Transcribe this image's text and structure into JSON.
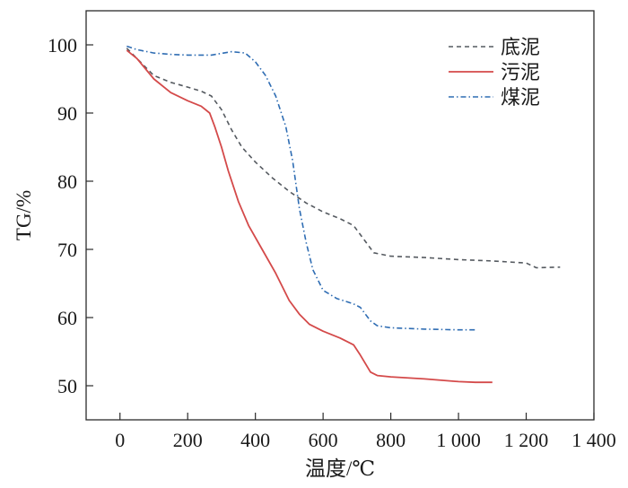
{
  "chart_data": {
    "type": "line",
    "xlabel": "温度/℃",
    "ylabel": "TG/%",
    "xlim": [
      -100,
      1400
    ],
    "ylim": [
      45,
      105
    ],
    "xticks": [
      0,
      200,
      400,
      600,
      800,
      1000,
      1200,
      1400
    ],
    "xtick_labels": [
      "0",
      "200",
      "400",
      "600",
      "800",
      "1 000",
      "1 200",
      "1 400"
    ],
    "yticks": [
      50,
      60,
      70,
      80,
      90,
      100
    ],
    "ytick_labels": [
      "50",
      "60",
      "70",
      "80",
      "90",
      "100"
    ],
    "grid": false,
    "legend_position": "top-right",
    "series": [
      {
        "name": "底泥",
        "color": "#555a60",
        "style": "dashed",
        "points": [
          [
            20,
            99.5
          ],
          [
            50,
            98
          ],
          [
            100,
            95.5
          ],
          [
            150,
            94.5
          ],
          [
            200,
            93.8
          ],
          [
            240,
            93.2
          ],
          [
            270,
            92.5
          ],
          [
            300,
            90.5
          ],
          [
            330,
            87.5
          ],
          [
            360,
            85
          ],
          [
            400,
            82.8
          ],
          [
            450,
            80.5
          ],
          [
            500,
            78.5
          ],
          [
            550,
            76.8
          ],
          [
            600,
            75.5
          ],
          [
            650,
            74.5
          ],
          [
            690,
            73.5
          ],
          [
            720,
            71.5
          ],
          [
            750,
            69.5
          ],
          [
            800,
            69
          ],
          [
            900,
            68.8
          ],
          [
            1000,
            68.5
          ],
          [
            1100,
            68.3
          ],
          [
            1200,
            68
          ],
          [
            1230,
            67.3
          ],
          [
            1300,
            67.4
          ]
        ]
      },
      {
        "name": "污泥",
        "color": "#d44a4a",
        "style": "solid",
        "points": [
          [
            20,
            99.2
          ],
          [
            50,
            98
          ],
          [
            100,
            95
          ],
          [
            150,
            93
          ],
          [
            200,
            91.8
          ],
          [
            240,
            91
          ],
          [
            265,
            90
          ],
          [
            280,
            88
          ],
          [
            300,
            85
          ],
          [
            320,
            81.5
          ],
          [
            350,
            77
          ],
          [
            380,
            73.5
          ],
          [
            420,
            70
          ],
          [
            460,
            66.5
          ],
          [
            500,
            62.5
          ],
          [
            530,
            60.5
          ],
          [
            560,
            59
          ],
          [
            600,
            58
          ],
          [
            650,
            57
          ],
          [
            690,
            56
          ],
          [
            710,
            54.5
          ],
          [
            740,
            52
          ],
          [
            760,
            51.5
          ],
          [
            800,
            51.3
          ],
          [
            900,
            51
          ],
          [
            1000,
            50.6
          ],
          [
            1050,
            50.5
          ],
          [
            1100,
            50.5
          ]
        ]
      },
      {
        "name": "煤泥",
        "color": "#2f6db3",
        "style": "dashdot",
        "points": [
          [
            20,
            99.8
          ],
          [
            50,
            99.3
          ],
          [
            100,
            98.8
          ],
          [
            150,
            98.6
          ],
          [
            200,
            98.5
          ],
          [
            270,
            98.5
          ],
          [
            330,
            99
          ],
          [
            370,
            98.8
          ],
          [
            400,
            97.5
          ],
          [
            430,
            95.5
          ],
          [
            460,
            92.5
          ],
          [
            490,
            88
          ],
          [
            510,
            83
          ],
          [
            530,
            76
          ],
          [
            550,
            71
          ],
          [
            570,
            67
          ],
          [
            600,
            64
          ],
          [
            640,
            62.8
          ],
          [
            690,
            62
          ],
          [
            710,
            61.5
          ],
          [
            740,
            59.5
          ],
          [
            760,
            58.8
          ],
          [
            800,
            58.5
          ],
          [
            900,
            58.3
          ],
          [
            1000,
            58.2
          ],
          [
            1050,
            58.2
          ]
        ]
      }
    ]
  }
}
